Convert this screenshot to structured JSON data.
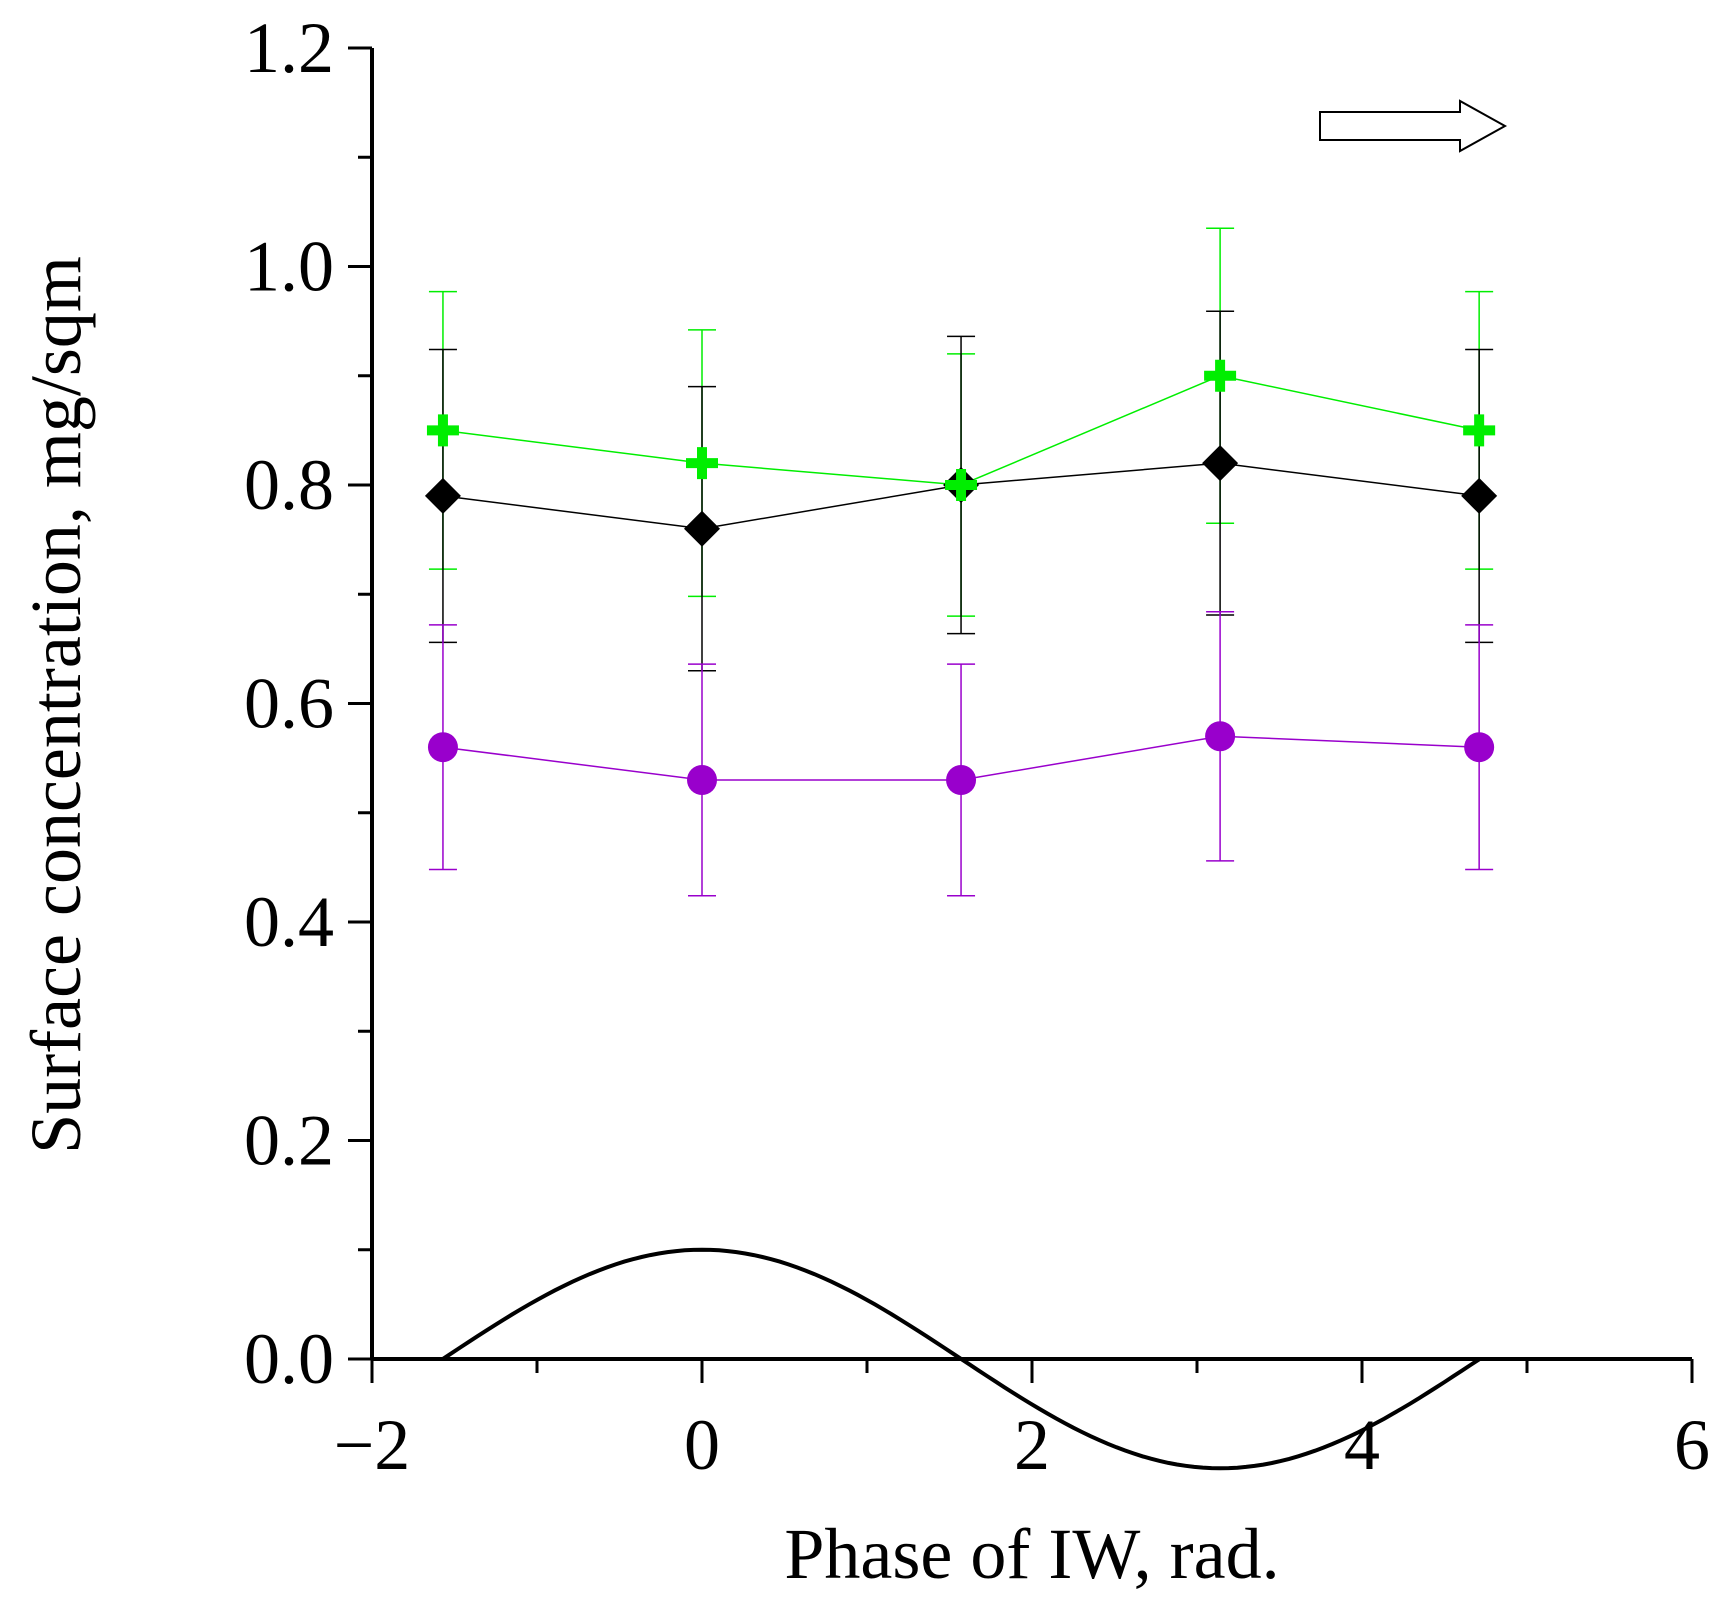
{
  "chart_data": {
    "type": "line",
    "title": "",
    "xlabel": "Phase of IW, rad.",
    "ylabel": "Surface concentration, mg/sqm",
    "xlim": [
      -2,
      6
    ],
    "ylim": [
      0,
      1.2
    ],
    "x_ticks": [
      {
        "value": -2,
        "label": "−2"
      },
      {
        "value": 0,
        "label": "0"
      },
      {
        "value": 2,
        "label": "2"
      },
      {
        "value": 4,
        "label": "4"
      },
      {
        "value": 6,
        "label": "6"
      }
    ],
    "y_ticks": [
      {
        "value": 0.0,
        "label": "0.0"
      },
      {
        "value": 0.2,
        "label": "0.2"
      },
      {
        "value": 0.4,
        "label": "0.4"
      },
      {
        "value": 0.6,
        "label": "0.6"
      },
      {
        "value": 0.8,
        "label": "0.8"
      },
      {
        "value": 1.0,
        "label": "1.0"
      },
      {
        "value": 1.2,
        "label": "1.2"
      }
    ],
    "x_minor_step": 1,
    "y_minor_step": 0.1,
    "grid": false,
    "legend": "none",
    "series": [
      {
        "name": "green",
        "color": "#00ee00",
        "marker": "cross",
        "x": [
          -1.57,
          0,
          1.57,
          3.14,
          4.71
        ],
        "values": [
          0.85,
          0.82,
          0.8,
          0.9,
          0.85
        ],
        "err_low": [
          0.723,
          0.698,
          0.68,
          0.765,
          0.723
        ],
        "err_high": [
          0.977,
          0.942,
          0.92,
          1.035,
          0.977
        ]
      },
      {
        "name": "black",
        "color": "#000000",
        "marker": "diamond",
        "x": [
          -1.57,
          0,
          1.57,
          3.14,
          4.71
        ],
        "values": [
          0.79,
          0.76,
          0.8,
          0.82,
          0.79
        ],
        "err_low": [
          0.656,
          0.63,
          0.664,
          0.681,
          0.656
        ],
        "err_high": [
          0.924,
          0.89,
          0.936,
          0.959,
          0.924
        ]
      },
      {
        "name": "purple",
        "color": "#9900cc",
        "marker": "circle",
        "x": [
          -1.57,
          0,
          1.57,
          3.14,
          4.71
        ],
        "values": [
          0.56,
          0.53,
          0.53,
          0.57,
          0.56
        ],
        "err_low": [
          0.448,
          0.424,
          0.424,
          0.456,
          0.448
        ],
        "err_high": [
          0.672,
          0.636,
          0.636,
          0.684,
          0.672
        ]
      }
    ],
    "wave": {
      "description": "internal wave phase curve",
      "function": "cos",
      "amplitude": 0.1,
      "x_range": [
        -1.57,
        4.71
      ],
      "color": "#000000"
    },
    "arrow": {
      "direction": "right",
      "placement": "top-right"
    }
  }
}
